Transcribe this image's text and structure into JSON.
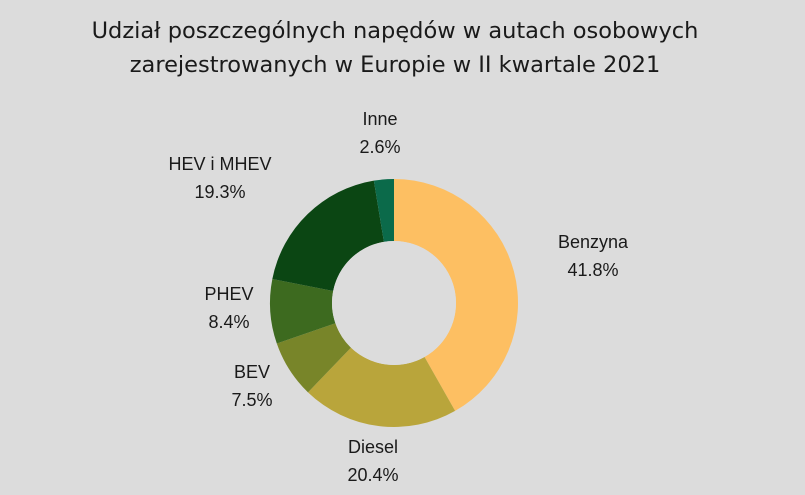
{
  "chart_data": {
    "type": "pie",
    "title_lines": [
      "Udział poszczególnych napędów w autach osobowych",
      "zarejestrowanych w Europie w II kwartale 2021"
    ],
    "donut": true,
    "slices": [
      {
        "label": "Benzyna",
        "value": 41.8,
        "value_label": "41.8%",
        "color": "#fdbf62"
      },
      {
        "label": "Diesel",
        "value": 20.4,
        "value_label": "20.4%",
        "color": "#b9a53b"
      },
      {
        "label": "BEV",
        "value": 7.5,
        "value_label": "7.5%",
        "color": "#788529"
      },
      {
        "label": "PHEV",
        "value": 8.4,
        "value_label": "8.4%",
        "color": "#3d6a1f"
      },
      {
        "label": "HEV i MHEV",
        "value": 19.3,
        "value_label": "19.3%",
        "color": "#0b4613"
      },
      {
        "label": "Inne",
        "value": 2.6,
        "value_label": "2.6%",
        "color": "#0b6a4a"
      }
    ],
    "background_color": "#dcdcdc"
  }
}
